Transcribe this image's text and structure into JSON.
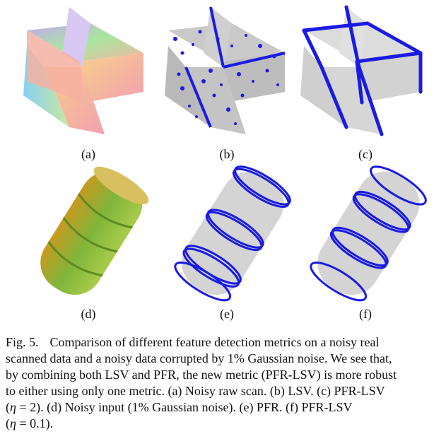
{
  "figure": {
    "panels": [
      {
        "id": "a",
        "label": "(a)"
      },
      {
        "id": "b",
        "label": "(b)"
      },
      {
        "id": "c",
        "label": "(c)"
      },
      {
        "id": "d",
        "label": "(d)"
      },
      {
        "id": "e",
        "label": "(e)"
      },
      {
        "id": "f",
        "label": "(f)"
      }
    ],
    "colors": {
      "feature_blue": "#1a1ae6",
      "point_gray": "#b8b8b8",
      "cylinder_green": "#7fb53a",
      "box_face": "#f3a6a0"
    }
  },
  "caption": {
    "figno": "Fig. 5.",
    "line1": "Comparison of different feature detection metrics on a noisy real",
    "line2": "scanned data and a noisy data corrupted by 1% Gaussian noise. We see that,",
    "line3": "by combining both LSV and PFR, the new metric (PFR-LSV) is more robust",
    "line4a": "to either using only one metric. (a) Noisy raw scan. (b) LSV. (c) PFR-LSV",
    "line5a": "(",
    "eta1": "η",
    "line5b": " = 2). (d) Noisy input (1% Gaussian noise). (e) PFR. (f) PFR-LSV",
    "line6a": "(",
    "eta2": "η",
    "line6b": " = 0.1)."
  }
}
